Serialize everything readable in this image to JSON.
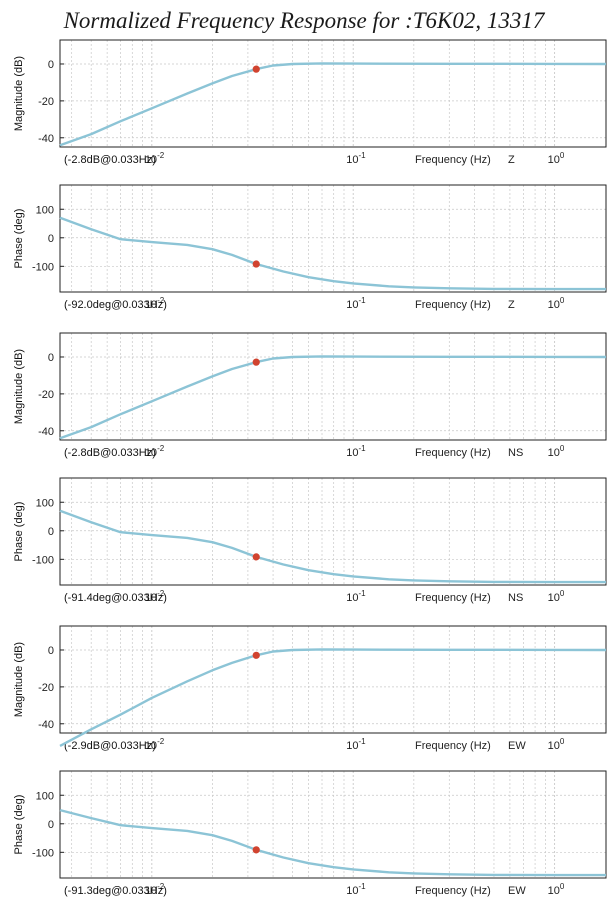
{
  "title": "Normalized Frequency Response for :T6K02, 13317",
  "colors": {
    "curve": "#8cc4d6",
    "marker": "#d1432f",
    "grid": "#c8c8c8",
    "axis": "#222222"
  },
  "chart_data": [
    {
      "type": "line",
      "component": "Z",
      "quantity": "magnitude",
      "ylabel": "Magnitude (dB)",
      "xlabel": "Frequency (Hz)",
      "xscale": "log",
      "xlim": [
        0.0035,
        1.8
      ],
      "ylim": [
        -45,
        13
      ],
      "yticks": [
        0,
        -20,
        -40
      ],
      "x_ticklabels": [
        "10-2",
        "10-1",
        "100"
      ],
      "grid": true,
      "marker": {
        "x": 0.033,
        "y": -2.8
      },
      "annotation": "(-2.8dB@0.033Hz)",
      "series": [
        {
          "x": [
            0.0035,
            0.005,
            0.007,
            0.01,
            0.015,
            0.02,
            0.025,
            0.033,
            0.04,
            0.05,
            0.07,
            0.1,
            0.3,
            1.0,
            1.8
          ],
          "y": [
            -44,
            -38,
            -31,
            -24,
            -16,
            -10.5,
            -6.5,
            -2.8,
            -0.8,
            0,
            0.3,
            0.2,
            0.1,
            0.05,
            0
          ]
        }
      ]
    },
    {
      "type": "line",
      "component": "Z",
      "quantity": "phase",
      "ylabel": "Phase (deg)",
      "xlabel": "Frequency (Hz)",
      "xscale": "log",
      "xlim": [
        0.0035,
        1.8
      ],
      "ylim": [
        -190,
        185
      ],
      "yticks": [
        100,
        0,
        -100
      ],
      "x_ticklabels": [
        "10-2",
        "10-1",
        "100"
      ],
      "grid": true,
      "marker": {
        "x": 0.033,
        "y": -92.0
      },
      "annotation": "(-92.0deg@0.033Hz)",
      "series": [
        {
          "x": [
            0.0035,
            0.005,
            0.007,
            0.01,
            0.015,
            0.02,
            0.025,
            0.033,
            0.045,
            0.06,
            0.08,
            0.1,
            0.15,
            0.2,
            0.3,
            0.5,
            1.0,
            1.8
          ],
          "y": [
            70,
            30,
            -5,
            -15,
            -25,
            -40,
            -60,
            -92,
            -118,
            -138,
            -152,
            -160,
            -170,
            -174,
            -177,
            -179,
            -180,
            -180
          ]
        }
      ]
    },
    {
      "type": "line",
      "component": "NS",
      "quantity": "magnitude",
      "ylabel": "Magnitude (dB)",
      "xlabel": "Frequency (Hz)",
      "xscale": "log",
      "xlim": [
        0.0035,
        1.8
      ],
      "ylim": [
        -45,
        13
      ],
      "yticks": [
        0,
        -20,
        -40
      ],
      "x_ticklabels": [
        "10-2",
        "10-1",
        "100"
      ],
      "grid": true,
      "marker": {
        "x": 0.033,
        "y": -2.8
      },
      "annotation": "(-2.8dB@0.033Hz)",
      "series": [
        {
          "x": [
            0.0035,
            0.005,
            0.007,
            0.01,
            0.015,
            0.02,
            0.025,
            0.033,
            0.04,
            0.05,
            0.07,
            0.1,
            0.3,
            1.0,
            1.8
          ],
          "y": [
            -44,
            -38,
            -31,
            -24,
            -16,
            -10.5,
            -6.5,
            -2.8,
            -0.8,
            0,
            0.3,
            0.2,
            0.1,
            0.05,
            0
          ]
        }
      ]
    },
    {
      "type": "line",
      "component": "NS",
      "quantity": "phase",
      "ylabel": "Phase (deg)",
      "xlabel": "Frequency (Hz)",
      "xscale": "log",
      "xlim": [
        0.0035,
        1.8
      ],
      "ylim": [
        -190,
        185
      ],
      "yticks": [
        100,
        0,
        -100
      ],
      "x_ticklabels": [
        "10-2",
        "10-1",
        "100"
      ],
      "grid": true,
      "marker": {
        "x": 0.033,
        "y": -91.4
      },
      "annotation": "(-91.4deg@0.033Hz)",
      "series": [
        {
          "x": [
            0.0035,
            0.005,
            0.007,
            0.01,
            0.015,
            0.02,
            0.025,
            0.033,
            0.045,
            0.06,
            0.08,
            0.1,
            0.15,
            0.2,
            0.3,
            0.5,
            1.0,
            1.8
          ],
          "y": [
            70,
            30,
            -5,
            -15,
            -25,
            -40,
            -60,
            -91.4,
            -118,
            -138,
            -152,
            -160,
            -170,
            -174,
            -177,
            -179,
            -180,
            -180
          ]
        }
      ]
    },
    {
      "type": "line",
      "component": "EW",
      "quantity": "magnitude",
      "ylabel": "Magnitude (dB)",
      "xlabel": "Frequency (Hz)",
      "xscale": "log",
      "xlim": [
        0.0035,
        1.8
      ],
      "ylim": [
        -45,
        13
      ],
      "yticks": [
        0,
        -20,
        -40
      ],
      "x_ticklabels": [
        "10-2",
        "10-1",
        "100"
      ],
      "grid": true,
      "marker": {
        "x": 0.033,
        "y": -2.9
      },
      "annotation": "(-2.9dB@0.033Hz)",
      "series": [
        {
          "x": [
            0.0035,
            0.005,
            0.007,
            0.01,
            0.015,
            0.02,
            0.025,
            0.033,
            0.04,
            0.05,
            0.07,
            0.1,
            0.3,
            1.0,
            1.8
          ],
          "y": [
            -52,
            -43,
            -35,
            -26,
            -17,
            -11,
            -7,
            -2.9,
            -0.8,
            0,
            0.3,
            0.2,
            0.1,
            0.05,
            0
          ]
        }
      ]
    },
    {
      "type": "line",
      "component": "EW",
      "quantity": "phase",
      "ylabel": "Phase (deg)",
      "xlabel": "Frequency (Hz)",
      "xscale": "log",
      "xlim": [
        0.0035,
        1.8
      ],
      "ylim": [
        -190,
        185
      ],
      "yticks": [
        100,
        0,
        -100
      ],
      "x_ticklabels": [
        "10-2",
        "10-1",
        "100"
      ],
      "grid": true,
      "marker": {
        "x": 0.033,
        "y": -91.3
      },
      "annotation": "(-91.3deg@0.033Hz)",
      "series": [
        {
          "x": [
            0.0035,
            0.005,
            0.007,
            0.01,
            0.015,
            0.02,
            0.025,
            0.033,
            0.045,
            0.06,
            0.08,
            0.1,
            0.15,
            0.2,
            0.3,
            0.5,
            1.0,
            1.8
          ],
          "y": [
            48,
            20,
            -5,
            -15,
            -25,
            -40,
            -60,
            -91.3,
            -118,
            -138,
            -152,
            -160,
            -170,
            -174,
            -177,
            -179,
            -180,
            -180
          ]
        }
      ]
    }
  ]
}
